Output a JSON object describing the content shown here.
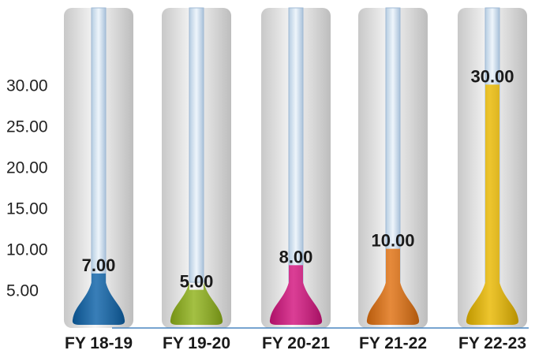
{
  "chart_data": {
    "type": "bar",
    "categories": [
      "FY 18-19",
      "FY 19-20",
      "FY 20-21",
      "FY 21-22",
      "FY 22-23"
    ],
    "values": [
      7.0,
      5.0,
      8.0,
      10.0,
      30.0
    ],
    "value_labels": [
      "7.00",
      "5.00",
      "8.00",
      "10.00",
      "30.00"
    ],
    "yticks": [
      5,
      10,
      15,
      20,
      25,
      30
    ],
    "ytick_labels": [
      "5.00",
      "10.00",
      "15.00",
      "20.00",
      "25.00",
      "30.00"
    ],
    "ylim": [
      0,
      35
    ],
    "colors": [
      "#0d62a8",
      "#8fb21a",
      "#d3147e",
      "#e07010",
      "#e9b800"
    ],
    "grid": false,
    "legend": "none"
  }
}
